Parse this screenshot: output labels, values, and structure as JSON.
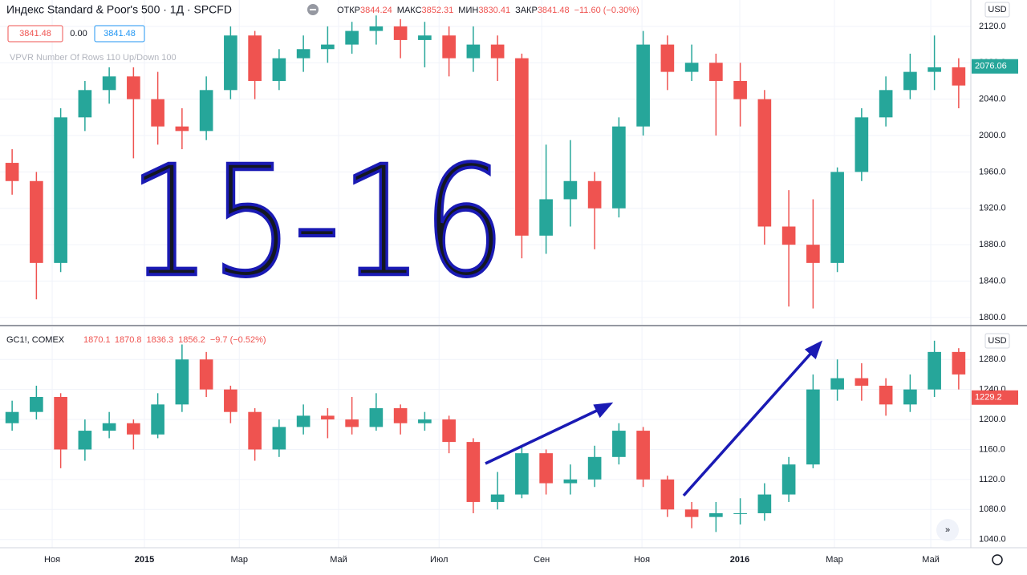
{
  "chart_data": [
    {
      "type": "candlestick",
      "title": "Индекс Standard & Poor's 500 · 1Д · SPCFD",
      "quote": [
        {
          "label": "ОТКР",
          "value": "3844.24"
        },
        {
          "label": "МАКС",
          "value": "3852.31"
        },
        {
          "label": "МИН",
          "value": "3830.41"
        },
        {
          "label": "ЗАКР",
          "value": "3841.48"
        }
      ],
      "change": "−11.60 (−0.30%)",
      "price_boxes": [
        "3841.48",
        "0.00",
        "3841.48"
      ],
      "indicator": "VPVR Number Of Rows 110 Up/Down 100",
      "currency": "USD",
      "annotation": "15-16",
      "last_price": 2076.06,
      "up_color": "#26a69a",
      "down_color": "#ef5350",
      "open": [
        1970,
        1950,
        1860,
        2020,
        2050,
        2065,
        2040,
        2010,
        2005,
        2050,
        2110,
        2060,
        2085,
        2095,
        2100,
        2115,
        2120,
        2105,
        2110,
        2085,
        2100,
        2085,
        1890,
        1930,
        1950,
        1920,
        2010,
        2100,
        2070,
        2080,
        2060,
        2040,
        1900,
        1880,
        1860,
        1960,
        2020,
        2050,
        2070,
        2075
      ],
      "high": [
        1985,
        1960,
        2030,
        2060,
        2075,
        2075,
        2070,
        2030,
        2065,
        2120,
        2115,
        2095,
        2110,
        2120,
        2125,
        2132,
        2128,
        2125,
        2120,
        2120,
        2110,
        2090,
        1990,
        1995,
        1960,
        2020,
        2115,
        2110,
        2100,
        2090,
        2080,
        2050,
        1940,
        1930,
        1965,
        2030,
        2065,
        2090,
        2110,
        2085
      ],
      "low": [
        1935,
        1820,
        1850,
        2005,
        2035,
        1975,
        1990,
        1985,
        1995,
        2040,
        2040,
        2050,
        2070,
        2080,
        2090,
        2100,
        2085,
        2075,
        2065,
        2070,
        2060,
        1865,
        1870,
        1900,
        1875,
        1910,
        2000,
        2050,
        2060,
        2000,
        2010,
        1880,
        1812,
        1810,
        1850,
        1950,
        2010,
        2040,
        2050,
        2030
      ],
      "close": [
        1950,
        1860,
        2020,
        2050,
        2065,
        2040,
        2010,
        2005,
        2050,
        2110,
        2060,
        2085,
        2095,
        2100,
        2115,
        2120,
        2105,
        2110,
        2085,
        2100,
        2085,
        1890,
        1930,
        1950,
        1920,
        2010,
        2100,
        2070,
        2080,
        2060,
        2040,
        1900,
        1880,
        1860,
        1960,
        2020,
        2050,
        2070,
        2075,
        2055
      ],
      "ylim": [
        1792,
        2149
      ],
      "yticks": [
        {
          "value": 2120,
          "label": "2120.0"
        },
        {
          "value": 2080,
          "label": "2080.0"
        },
        {
          "value": 2040,
          "label": "2040.0"
        },
        {
          "value": 2000,
          "label": "2000.0"
        },
        {
          "value": 1960,
          "label": "1960.0"
        },
        {
          "value": 1920,
          "label": "1920.0"
        },
        {
          "value": 1880,
          "label": "1880.0"
        },
        {
          "value": 1840,
          "label": "1840.0"
        },
        {
          "value": 1800,
          "label": "1800.0"
        }
      ],
      "grid": true
    },
    {
      "type": "candlestick",
      "title": "GC1!, COMEX",
      "quote": [
        {
          "value": "1870.1"
        },
        {
          "value": "1870.8"
        },
        {
          "value": "1836.3"
        },
        {
          "value": "1856.2"
        }
      ],
      "change": "−9.7 (−0.52%)",
      "currency": "USD",
      "last_price": 1229.2,
      "up_color": "#26a69a",
      "down_color": "#ef5350",
      "open": [
        1195,
        1210,
        1230,
        1160,
        1185,
        1195,
        1180,
        1220,
        1280,
        1240,
        1210,
        1160,
        1190,
        1205,
        1200,
        1190,
        1215,
        1195,
        1200,
        1170,
        1090,
        1100,
        1155,
        1115,
        1120,
        1150,
        1185,
        1120,
        1080,
        1070,
        1075,
        1075,
        1100,
        1140,
        1240,
        1255,
        1245,
        1220,
        1240,
        1290
      ],
      "high": [
        1225,
        1245,
        1235,
        1200,
        1210,
        1200,
        1235,
        1300,
        1290,
        1245,
        1215,
        1200,
        1220,
        1215,
        1230,
        1235,
        1220,
        1210,
        1205,
        1175,
        1130,
        1165,
        1160,
        1140,
        1165,
        1195,
        1190,
        1125,
        1090,
        1090,
        1095,
        1115,
        1150,
        1260,
        1280,
        1275,
        1255,
        1260,
        1305,
        1295
      ],
      "low": [
        1185,
        1200,
        1135,
        1145,
        1175,
        1160,
        1175,
        1210,
        1230,
        1195,
        1145,
        1150,
        1180,
        1175,
        1180,
        1185,
        1180,
        1185,
        1155,
        1075,
        1080,
        1095,
        1100,
        1100,
        1110,
        1140,
        1110,
        1070,
        1055,
        1050,
        1060,
        1065,
        1090,
        1135,
        1225,
        1225,
        1205,
        1210,
        1230,
        1240
      ],
      "close": [
        1210,
        1230,
        1160,
        1185,
        1195,
        1180,
        1220,
        1280,
        1240,
        1210,
        1160,
        1190,
        1205,
        1200,
        1190,
        1215,
        1195,
        1200,
        1170,
        1090,
        1100,
        1155,
        1115,
        1120,
        1150,
        1185,
        1120,
        1080,
        1070,
        1075,
        1075,
        1100,
        1140,
        1240,
        1255,
        1245,
        1220,
        1240,
        1290,
        1260
      ],
      "ylim": [
        1029,
        1323
      ],
      "yticks": [
        {
          "value": 1280,
          "label": "1280.0"
        },
        {
          "value": 1240,
          "label": "1240.0"
        },
        {
          "value": 1200,
          "label": "1200.0"
        },
        {
          "value": 1160,
          "label": "1160.0"
        },
        {
          "value": 1120,
          "label": "1120.0"
        },
        {
          "value": 1080,
          "label": "1080.0"
        },
        {
          "value": 1040,
          "label": "1040.0"
        }
      ],
      "xlim": [
        -0.5,
        39.5
      ],
      "xticks": [
        {
          "value": 1.65,
          "label": "Ноя"
        },
        {
          "value": 5.45,
          "label": "2015"
        },
        {
          "value": 9.36,
          "label": "Мар"
        },
        {
          "value": 13.45,
          "label": "Май"
        },
        {
          "value": 17.59,
          "label": "Июл"
        },
        {
          "value": 21.82,
          "label": "Сен"
        },
        {
          "value": 25.95,
          "label": "Ноя"
        },
        {
          "value": 29.98,
          "label": "2016"
        },
        {
          "value": 33.88,
          "label": "Мар"
        },
        {
          "value": 37.85,
          "label": "Май"
        }
      ],
      "grid": true
    }
  ]
}
